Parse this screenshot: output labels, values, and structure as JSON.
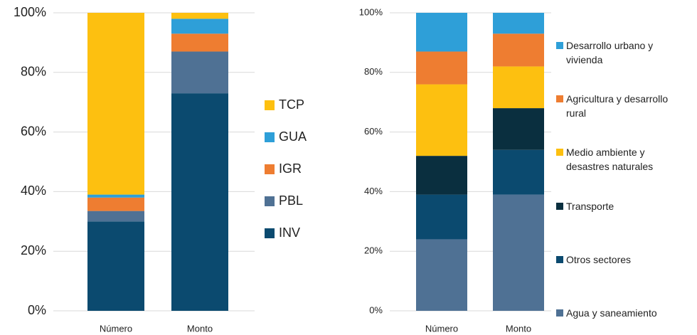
{
  "chart_data": [
    {
      "type": "stacked_bar",
      "categories": [
        "Número",
        "Monto"
      ],
      "series": [
        {
          "name": "INV",
          "color": "#0b4a6f",
          "values": [
            30,
            73
          ]
        },
        {
          "name": "PBL",
          "color": "#4f7194",
          "values": [
            3.5,
            14
          ]
        },
        {
          "name": "IGR",
          "color": "#ee7d31",
          "values": [
            4.5,
            6
          ]
        },
        {
          "name": "GUA",
          "color": "#2e9fd8",
          "values": [
            1,
            5
          ]
        },
        {
          "name": "TCP",
          "color": "#fdc010",
          "values": [
            61,
            2
          ]
        }
      ],
      "ylim": [
        0,
        100
      ],
      "yticks": [
        {
          "value": 0,
          "label": "0%"
        },
        {
          "value": 20,
          "label": "20%"
        },
        {
          "value": 40,
          "label": "40%"
        },
        {
          "value": 60,
          "label": "60%"
        },
        {
          "value": 80,
          "label": "80%"
        },
        {
          "value": 100,
          "label": "100%"
        }
      ],
      "grid": true,
      "legend": "right"
    },
    {
      "type": "stacked_bar",
      "categories": [
        "Número",
        "Monto"
      ],
      "series": [
        {
          "name": "Agua y saneamiento",
          "color": "#4f7194",
          "values": [
            24,
            39
          ]
        },
        {
          "name": "Otros sectores",
          "color": "#0b4a6f",
          "values": [
            15,
            15
          ]
        },
        {
          "name": "Transporte",
          "color": "#0a2f3f",
          "values": [
            13,
            14
          ]
        },
        {
          "name": "Medio ambiente y desastres naturales",
          "color": "#fdc010",
          "values": [
            24,
            14
          ]
        },
        {
          "name": "Agricultura y desarrollo rural",
          "color": "#ee7d31",
          "values": [
            11,
            11
          ]
        },
        {
          "name": "Desarrollo urbano y vivienda",
          "color": "#2e9fd8",
          "values": [
            13,
            7
          ]
        }
      ],
      "ylim": [
        0,
        100
      ],
      "yticks": [
        {
          "value": 0,
          "label": "0%"
        },
        {
          "value": 20,
          "label": "20%"
        },
        {
          "value": 40,
          "label": "40%"
        },
        {
          "value": 60,
          "label": "60%"
        },
        {
          "value": 80,
          "label": "80%"
        },
        {
          "value": 100,
          "label": "100%"
        }
      ],
      "grid": true,
      "legend": "right"
    }
  ]
}
